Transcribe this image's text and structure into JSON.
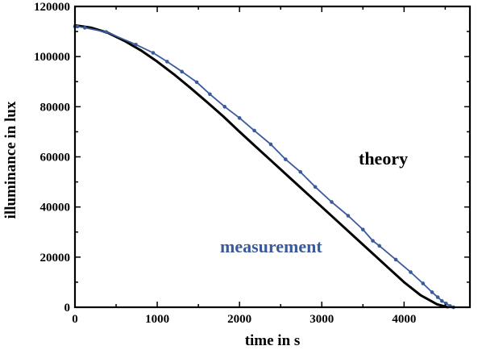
{
  "chart_data": {
    "type": "line",
    "xlabel": "time in s",
    "ylabel": "illuminance in lux",
    "xlim": [
      0,
      4800
    ],
    "ylim": [
      0,
      120000
    ],
    "x_ticks": [
      0,
      1000,
      2000,
      3000,
      4000
    ],
    "y_ticks": [
      0,
      20000,
      40000,
      60000,
      80000,
      100000,
      120000
    ],
    "x_tick_labels": [
      "0",
      "1000",
      "2000",
      "3000",
      "4000"
    ],
    "y_tick_labels": [
      "0",
      "20000",
      "40000",
      "60000",
      "80000",
      "100000",
      "120000"
    ],
    "grid": false,
    "annotations": [
      {
        "text": "theory",
        "color": "#000000",
        "series": "theory"
      },
      {
        "text": "measurement",
        "color": "#3a5a9c",
        "series": "measurement"
      }
    ],
    "series": [
      {
        "key": "theory",
        "color": "#000000",
        "markers": false,
        "x": [
          0,
          200,
          400,
          600,
          800,
          1000,
          1200,
          1400,
          1600,
          1800,
          2000,
          2200,
          2400,
          2600,
          2800,
          3000,
          3200,
          3400,
          3600,
          3800,
          4000,
          4200,
          4400,
          4530
        ],
        "y": [
          112500,
          111500,
          109500,
          106300,
          102500,
          98000,
          93000,
          87600,
          82000,
          76200,
          70000,
          64000,
          58000,
          52000,
          46000,
          40000,
          34000,
          28000,
          22000,
          16000,
          10000,
          4800,
          1200,
          0
        ]
      },
      {
        "key": "measurement",
        "color": "#3a5a9c",
        "markers": true,
        "x": [
          0,
          30,
          120,
          380,
          740,
          950,
          1120,
          1300,
          1480,
          1640,
          1820,
          2000,
          2180,
          2380,
          2560,
          2740,
          2920,
          3120,
          3320,
          3500,
          3620,
          3700,
          3900,
          4080,
          4230,
          4340,
          4410,
          4460,
          4510,
          4560,
          4600
        ],
        "y": [
          112000,
          112000,
          111500,
          109800,
          104800,
          101500,
          98000,
          94000,
          89800,
          85000,
          80000,
          75500,
          70500,
          65000,
          59000,
          54000,
          48000,
          42000,
          36500,
          31000,
          26500,
          24500,
          19000,
          14000,
          9500,
          6000,
          4000,
          2500,
          1500,
          500,
          0
        ]
      }
    ]
  }
}
